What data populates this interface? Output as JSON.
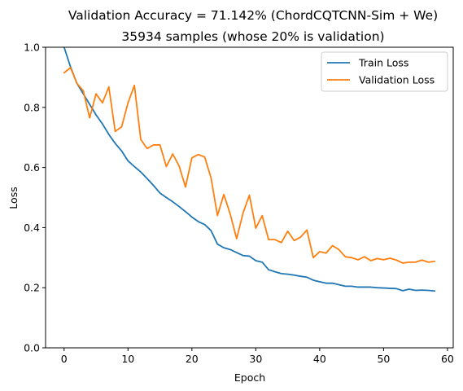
{
  "chart_data": {
    "type": "line",
    "title": "Validation Accuracy = 71.142% (ChordCQTCNN-Sim + We)",
    "subtitle": "35934 samples (whose 20% is validation)",
    "xlabel": "Epoch",
    "ylabel": "Loss",
    "xlim": [
      -2.9,
      60.9
    ],
    "ylim": [
      0,
      1.0
    ],
    "xticks": [
      0,
      10,
      20,
      30,
      40,
      50,
      60
    ],
    "yticks": [
      0.0,
      0.2,
      0.4,
      0.6,
      0.8,
      1.0
    ],
    "xtick_labels": [
      "0",
      "10",
      "20",
      "30",
      "40",
      "50",
      "60"
    ],
    "ytick_labels": [
      "0.0",
      "0.2",
      "0.4",
      "0.6",
      "0.8",
      "1.0"
    ],
    "grid": false,
    "legend_position": "top-right",
    "series": [
      {
        "name": "Train Loss",
        "color": "#1f77b4",
        "x": [
          0,
          1,
          2,
          3,
          4,
          5,
          6,
          7,
          8,
          9,
          10,
          11,
          12,
          13,
          14,
          15,
          16,
          17,
          18,
          19,
          20,
          21,
          22,
          23,
          24,
          25,
          26,
          27,
          28,
          29,
          30,
          31,
          32,
          33,
          34,
          35,
          36,
          37,
          38,
          39,
          40,
          41,
          42,
          43,
          44,
          45,
          46,
          47,
          48,
          49,
          50,
          51,
          52,
          53,
          54,
          55,
          56,
          57,
          58
        ],
        "values": [
          1.0,
          0.935,
          0.88,
          0.845,
          0.81,
          0.775,
          0.745,
          0.71,
          0.68,
          0.655,
          0.622,
          0.603,
          0.585,
          0.563,
          0.54,
          0.515,
          0.5,
          0.486,
          0.47,
          0.453,
          0.435,
          0.42,
          0.41,
          0.39,
          0.345,
          0.333,
          0.327,
          0.317,
          0.307,
          0.305,
          0.29,
          0.285,
          0.26,
          0.253,
          0.247,
          0.245,
          0.242,
          0.238,
          0.235,
          0.225,
          0.22,
          0.215,
          0.215,
          0.21,
          0.205,
          0.205,
          0.202,
          0.202,
          0.202,
          0.2,
          0.199,
          0.198,
          0.197,
          0.19,
          0.195,
          0.191,
          0.192,
          0.191,
          0.189
        ]
      },
      {
        "name": "Validation Loss",
        "color": "#ff7f0e",
        "x": [
          0,
          1,
          2,
          3,
          4,
          5,
          6,
          7,
          8,
          9,
          10,
          11,
          12,
          13,
          14,
          15,
          16,
          17,
          18,
          19,
          20,
          21,
          22,
          23,
          24,
          25,
          26,
          27,
          28,
          29,
          30,
          31,
          32,
          33,
          34,
          35,
          36,
          37,
          38,
          39,
          40,
          41,
          42,
          43,
          44,
          45,
          46,
          47,
          48,
          49,
          50,
          51,
          52,
          53,
          54,
          55,
          56,
          57,
          58
        ],
        "values": [
          0.915,
          0.932,
          0.88,
          0.855,
          0.765,
          0.845,
          0.815,
          0.868,
          0.72,
          0.735,
          0.815,
          0.873,
          0.693,
          0.663,
          0.675,
          0.675,
          0.603,
          0.645,
          0.605,
          0.535,
          0.632,
          0.643,
          0.635,
          0.565,
          0.44,
          0.51,
          0.445,
          0.363,
          0.448,
          0.508,
          0.398,
          0.44,
          0.36,
          0.36,
          0.35,
          0.388,
          0.357,
          0.368,
          0.392,
          0.3,
          0.32,
          0.315,
          0.34,
          0.327,
          0.303,
          0.3,
          0.293,
          0.303,
          0.29,
          0.297,
          0.293,
          0.298,
          0.292,
          0.282,
          0.285,
          0.285,
          0.292,
          0.285,
          0.288
        ]
      }
    ]
  }
}
